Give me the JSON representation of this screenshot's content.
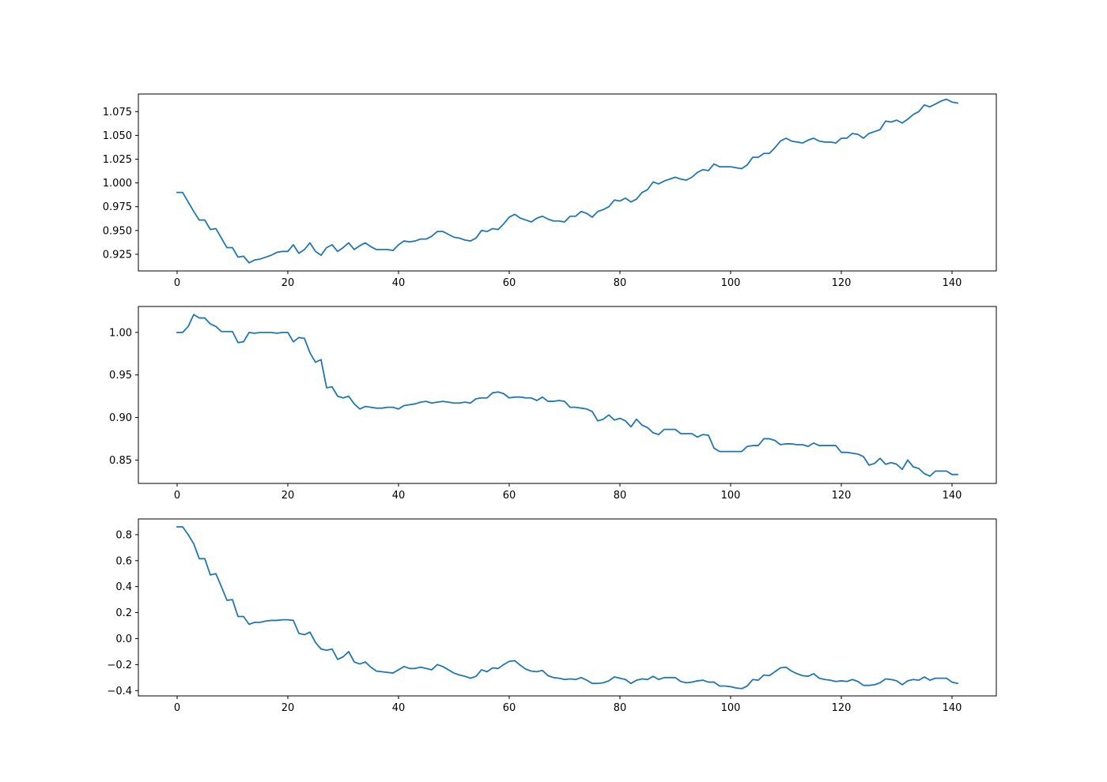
{
  "chart_data": [
    {
      "type": "line",
      "color": "#1f77b4",
      "x_start": 0,
      "x_step": 1,
      "xlim": [
        -7,
        148
      ],
      "ylim": [
        0.9075,
        1.0935
      ],
      "xticks": [
        0,
        20,
        40,
        60,
        80,
        100,
        120,
        140
      ],
      "xtick_labels": [
        "0",
        "20",
        "40",
        "60",
        "80",
        "100",
        "120",
        "140"
      ],
      "yticks": [
        0.925,
        0.95,
        0.975,
        1.0,
        1.025,
        1.05,
        1.075
      ],
      "ytick_labels": [
        "0.925",
        "0.950",
        "0.975",
        "1.000",
        "1.025",
        "1.050",
        "1.075"
      ],
      "series": [
        {
          "values": [
            0.99,
            0.99,
            0.98,
            0.97,
            0.961,
            0.961,
            0.951,
            0.952,
            0.942,
            0.932,
            0.932,
            0.922,
            0.923,
            0.916,
            0.919,
            0.92,
            0.922,
            0.924,
            0.927,
            0.928,
            0.928,
            0.935,
            0.926,
            0.93,
            0.937,
            0.928,
            0.924,
            0.932,
            0.935,
            0.928,
            0.932,
            0.937,
            0.93,
            0.934,
            0.937,
            0.933,
            0.93,
            0.93,
            0.93,
            0.929,
            0.935,
            0.939,
            0.938,
            0.939,
            0.941,
            0.941,
            0.944,
            0.949,
            0.949,
            0.946,
            0.943,
            0.942,
            0.94,
            0.939,
            0.942,
            0.95,
            0.949,
            0.952,
            0.951,
            0.957,
            0.964,
            0.967,
            0.963,
            0.961,
            0.959,
            0.963,
            0.965,
            0.962,
            0.96,
            0.96,
            0.959,
            0.965,
            0.965,
            0.97,
            0.968,
            0.964,
            0.97,
            0.972,
            0.975,
            0.982,
            0.981,
            0.984,
            0.98,
            0.983,
            0.99,
            0.993,
            1.001,
            0.999,
            1.002,
            1.004,
            1.006,
            1.004,
            1.003,
            1.006,
            1.011,
            1.014,
            1.013,
            1.02,
            1.017,
            1.017,
            1.017,
            1.016,
            1.015,
            1.019,
            1.027,
            1.027,
            1.031,
            1.031,
            1.037,
            1.044,
            1.047,
            1.044,
            1.043,
            1.042,
            1.045,
            1.047,
            1.044,
            1.043,
            1.043,
            1.042,
            1.047,
            1.047,
            1.052,
            1.051,
            1.047,
            1.052,
            1.054,
            1.056,
            1.065,
            1.064,
            1.066,
            1.063,
            1.067,
            1.072,
            1.075,
            1.082,
            1.08,
            1.083,
            1.086,
            1.088,
            1.085,
            1.084
          ]
        }
      ]
    },
    {
      "type": "line",
      "color": "#1f77b4",
      "x_start": 0,
      "x_step": 1,
      "xlim": [
        -7,
        148
      ],
      "ylim": [
        0.8225,
        1.0305
      ],
      "xticks": [
        0,
        20,
        40,
        60,
        80,
        100,
        120,
        140
      ],
      "xtick_labels": [
        "0",
        "20",
        "40",
        "60",
        "80",
        "100",
        "120",
        "140"
      ],
      "yticks": [
        0.85,
        0.9,
        0.95,
        1.0
      ],
      "ytick_labels": [
        "0.85",
        "0.90",
        "0.95",
        "1.00"
      ],
      "series": [
        {
          "values": [
            1.0,
            1.0,
            1.007,
            1.021,
            1.017,
            1.017,
            1.01,
            1.007,
            1.001,
            1.001,
            1.001,
            0.988,
            0.989,
            1.0,
            0.999,
            1.0,
            1.0,
            1.0,
            0.999,
            1.0,
            1.0,
            0.989,
            0.994,
            0.993,
            0.976,
            0.965,
            0.968,
            0.935,
            0.936,
            0.925,
            0.923,
            0.925,
            0.916,
            0.91,
            0.913,
            0.912,
            0.911,
            0.911,
            0.912,
            0.912,
            0.91,
            0.914,
            0.915,
            0.916,
            0.918,
            0.919,
            0.917,
            0.918,
            0.919,
            0.918,
            0.917,
            0.917,
            0.918,
            0.917,
            0.922,
            0.923,
            0.923,
            0.929,
            0.93,
            0.928,
            0.923,
            0.924,
            0.924,
            0.923,
            0.923,
            0.92,
            0.924,
            0.919,
            0.919,
            0.92,
            0.919,
            0.912,
            0.912,
            0.911,
            0.91,
            0.907,
            0.896,
            0.898,
            0.903,
            0.897,
            0.899,
            0.896,
            0.889,
            0.898,
            0.891,
            0.888,
            0.882,
            0.88,
            0.886,
            0.886,
            0.886,
            0.881,
            0.881,
            0.881,
            0.877,
            0.88,
            0.879,
            0.864,
            0.86,
            0.86,
            0.86,
            0.86,
            0.86,
            0.866,
            0.867,
            0.867,
            0.875,
            0.875,
            0.873,
            0.868,
            0.869,
            0.869,
            0.868,
            0.868,
            0.866,
            0.87,
            0.867,
            0.867,
            0.867,
            0.867,
            0.859,
            0.859,
            0.858,
            0.857,
            0.854,
            0.844,
            0.846,
            0.852,
            0.845,
            0.847,
            0.845,
            0.839,
            0.85,
            0.842,
            0.84,
            0.834,
            0.831,
            0.837,
            0.837,
            0.837,
            0.833,
            0.833
          ]
        }
      ]
    },
    {
      "type": "line",
      "color": "#1f77b4",
      "x_start": 0,
      "x_step": 1,
      "xlim": [
        -7,
        148
      ],
      "ylim": [
        -0.441,
        0.921
      ],
      "xticks": [
        0,
        20,
        40,
        60,
        80,
        100,
        120,
        140
      ],
      "xtick_labels": [
        "0",
        "20",
        "40",
        "60",
        "80",
        "100",
        "120",
        "140"
      ],
      "yticks": [
        -0.4,
        -0.2,
        0.0,
        0.2,
        0.4,
        0.6,
        0.8
      ],
      "ytick_labels": [
        "−0.4",
        "−0.2",
        "0.0",
        "0.2",
        "0.4",
        "0.6",
        "0.8"
      ],
      "series": [
        {
          "values": [
            0.86,
            0.86,
            0.8,
            0.73,
            0.615,
            0.615,
            0.49,
            0.5,
            0.4,
            0.295,
            0.3,
            0.17,
            0.17,
            0.11,
            0.125,
            0.125,
            0.135,
            0.14,
            0.14,
            0.145,
            0.145,
            0.14,
            0.04,
            0.03,
            0.05,
            -0.03,
            -0.08,
            -0.09,
            -0.08,
            -0.16,
            -0.14,
            -0.1,
            -0.18,
            -0.195,
            -0.18,
            -0.22,
            -0.25,
            -0.255,
            -0.26,
            -0.265,
            -0.24,
            -0.215,
            -0.23,
            -0.23,
            -0.22,
            -0.23,
            -0.24,
            -0.2,
            -0.215,
            -0.24,
            -0.265,
            -0.28,
            -0.29,
            -0.305,
            -0.29,
            -0.24,
            -0.255,
            -0.225,
            -0.23,
            -0.2,
            -0.175,
            -0.17,
            -0.205,
            -0.235,
            -0.25,
            -0.255,
            -0.245,
            -0.285,
            -0.3,
            -0.305,
            -0.315,
            -0.31,
            -0.315,
            -0.3,
            -0.32,
            -0.345,
            -0.345,
            -0.34,
            -0.325,
            -0.295,
            -0.305,
            -0.315,
            -0.345,
            -0.32,
            -0.31,
            -0.315,
            -0.29,
            -0.315,
            -0.3,
            -0.3,
            -0.3,
            -0.33,
            -0.34,
            -0.335,
            -0.325,
            -0.32,
            -0.335,
            -0.335,
            -0.365,
            -0.365,
            -0.37,
            -0.38,
            -0.385,
            -0.365,
            -0.315,
            -0.32,
            -0.28,
            -0.285,
            -0.255,
            -0.225,
            -0.22,
            -0.25,
            -0.27,
            -0.285,
            -0.29,
            -0.27,
            -0.305,
            -0.315,
            -0.32,
            -0.33,
            -0.325,
            -0.33,
            -0.315,
            -0.33,
            -0.36,
            -0.36,
            -0.355,
            -0.34,
            -0.31,
            -0.315,
            -0.325,
            -0.355,
            -0.325,
            -0.315,
            -0.32,
            -0.295,
            -0.32,
            -0.305,
            -0.305,
            -0.305,
            -0.335,
            -0.345
          ]
        }
      ]
    }
  ]
}
